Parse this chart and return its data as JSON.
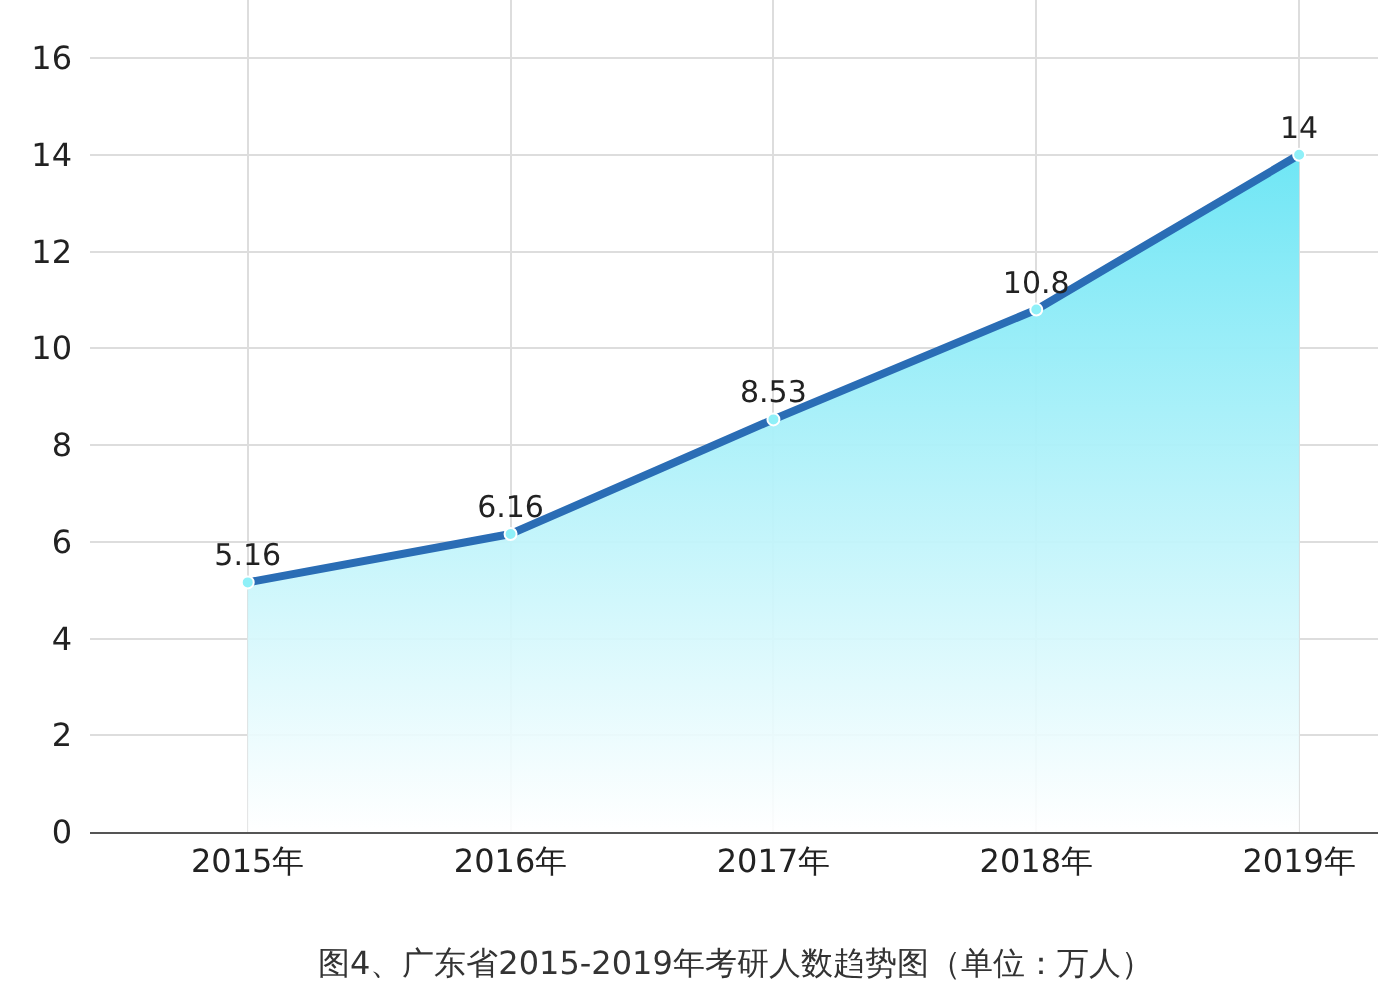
{
  "chart_data": {
    "type": "area",
    "categories": [
      "2015年",
      "2016年",
      "2017年",
      "2018年",
      "2019年"
    ],
    "series": [
      {
        "color": "#2a6db5",
        "values": [
          5.16,
          6.16,
          8.53,
          10.8,
          14
        ]
      }
    ],
    "ylim": [
      0,
      17.2
    ],
    "yticks": [
      0,
      2,
      4,
      6,
      8,
      10,
      12,
      14,
      16
    ],
    "grid": true,
    "data_labels": true,
    "marker": "circle",
    "annotations": [
      "图4、广东省2015-2019年考研人数趋势图（单位：万人）"
    ]
  }
}
